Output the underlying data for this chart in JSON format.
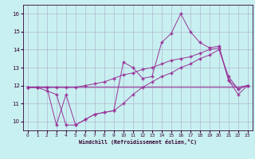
{
  "xlabel": "Windchill (Refroidissement éolien,°C)",
  "x": [
    0,
    1,
    2,
    3,
    4,
    5,
    6,
    7,
    8,
    9,
    10,
    11,
    12,
    13,
    14,
    15,
    16,
    17,
    18,
    19,
    20,
    21,
    22,
    23
  ],
  "line_spiky": [
    11.9,
    11.9,
    11.9,
    9.8,
    11.5,
    9.8,
    10.1,
    10.4,
    10.5,
    10.6,
    13.3,
    13.0,
    12.4,
    12.5,
    14.4,
    14.9,
    16.0,
    15.0,
    14.4,
    14.1,
    14.2,
    12.3,
    11.5,
    12.0
  ],
  "line_upper_trend": [
    11.9,
    11.9,
    11.9,
    11.9,
    11.9,
    11.9,
    12.0,
    12.1,
    12.2,
    12.4,
    12.6,
    12.7,
    12.9,
    13.0,
    13.2,
    13.4,
    13.5,
    13.6,
    13.8,
    14.0,
    14.1,
    12.3,
    11.8,
    12.0
  ],
  "line_flat": [
    11.9,
    11.9,
    11.9,
    11.9,
    11.9,
    11.9,
    11.9,
    11.9,
    11.9,
    11.9,
    11.9,
    11.9,
    11.9,
    11.9,
    11.9,
    11.9,
    11.9,
    11.9,
    11.9,
    11.9,
    11.9,
    11.9,
    11.9,
    12.0
  ],
  "line_lower_trend": [
    11.9,
    11.9,
    11.7,
    11.5,
    9.8,
    9.8,
    10.1,
    10.4,
    10.5,
    10.6,
    11.0,
    11.5,
    11.9,
    12.2,
    12.5,
    12.7,
    13.0,
    13.2,
    13.5,
    13.7,
    14.0,
    12.5,
    11.8,
    12.0
  ],
  "bg_color": "#c8f0f0",
  "line_color": "#993399",
  "grid_color": "#aaaacc",
  "ylim": [
    9.5,
    16.5
  ],
  "xlim": [
    -0.5,
    23.5
  ],
  "yticks": [
    10,
    11,
    12,
    13,
    14,
    15,
    16
  ],
  "xticks": [
    0,
    1,
    2,
    3,
    4,
    5,
    6,
    7,
    8,
    9,
    10,
    11,
    12,
    13,
    14,
    15,
    16,
    17,
    18,
    19,
    20,
    21,
    22,
    23
  ]
}
